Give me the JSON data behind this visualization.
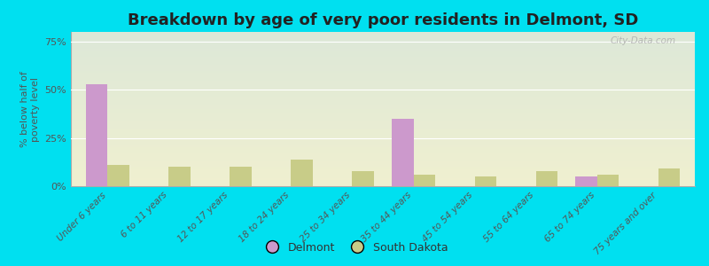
{
  "title": "Breakdown by age of very poor residents in Delmont, SD",
  "categories": [
    "Under 6 years",
    "6 to 11 years",
    "12 to 17 years",
    "18 to 24 years",
    "25 to 34 years",
    "35 to 44 years",
    "45 to 54 years",
    "55 to 64 years",
    "65 to 74 years",
    "75 years and over"
  ],
  "delmont_values": [
    53,
    0,
    0,
    0,
    0,
    35,
    0,
    0,
    5,
    0
  ],
  "sd_values": [
    11,
    10,
    10,
    14,
    8,
    6,
    5,
    8,
    6,
    9
  ],
  "delmont_color": "#cc99cc",
  "sd_color": "#c8cc88",
  "background_outer": "#00e0f0",
  "background_plot_top": "#dde8d8",
  "background_plot_bottom": "#f0f0d0",
  "ylabel": "% below half of\npoverty level",
  "ylim": [
    0,
    80
  ],
  "yticks": [
    0,
    25,
    50,
    75
  ],
  "ytick_labels": [
    "0%",
    "25%",
    "50%",
    "75%"
  ],
  "bar_width": 0.35,
  "title_fontsize": 13,
  "watermark": "City-Data.com"
}
